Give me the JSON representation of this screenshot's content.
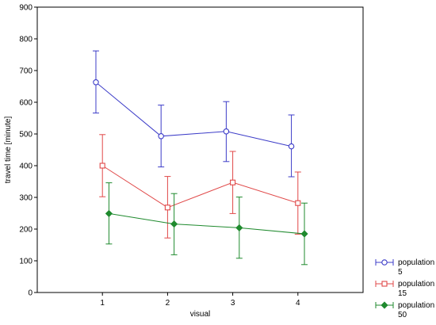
{
  "chart_data": {
    "type": "line",
    "title": "",
    "xlabel": "visual",
    "ylabel": "travel time [minute]",
    "xlim": [
      0,
      5
    ],
    "ylim": [
      0,
      900
    ],
    "x_ticks": [
      "1",
      "2",
      "3",
      "4"
    ],
    "y_ticks": [
      "0",
      "100",
      "200",
      "300",
      "400",
      "500",
      "600",
      "700",
      "800",
      "900"
    ],
    "grid": false,
    "legend_position": "bottom-right, outside plot",
    "error_bars": true,
    "series": [
      {
        "name": "population\n5",
        "label_lines": [
          "population",
          "5"
        ],
        "color": "#3c3cc8",
        "marker": "circle",
        "points": [
          {
            "x": 0.9,
            "y": 663,
            "lower": 566,
            "upper": 762
          },
          {
            "x": 1.9,
            "y": 493,
            "lower": 396,
            "upper": 591
          },
          {
            "x": 2.9,
            "y": 508,
            "lower": 413,
            "upper": 602
          },
          {
            "x": 3.9,
            "y": 461,
            "lower": 365,
            "upper": 560
          }
        ]
      },
      {
        "name": "population\n15",
        "label_lines": [
          "population",
          "15"
        ],
        "color": "#e04848",
        "marker": "square",
        "points": [
          {
            "x": 1.0,
            "y": 400,
            "lower": 302,
            "upper": 498
          },
          {
            "x": 2.0,
            "y": 268,
            "lower": 172,
            "upper": 366
          },
          {
            "x": 3.0,
            "y": 347,
            "lower": 249,
            "upper": 445
          },
          {
            "x": 4.0,
            "y": 282,
            "lower": 184,
            "upper": 380
          }
        ]
      },
      {
        "name": "population\n50",
        "label_lines": [
          "population",
          "50"
        ],
        "color": "#1f8a2e",
        "marker": "diamond",
        "points": [
          {
            "x": 1.1,
            "y": 249,
            "lower": 153,
            "upper": 346
          },
          {
            "x": 2.1,
            "y": 216,
            "lower": 119,
            "upper": 312
          },
          {
            "x": 3.1,
            "y": 204,
            "lower": 108,
            "upper": 301
          },
          {
            "x": 4.1,
            "y": 185,
            "lower": 88,
            "upper": 282
          }
        ]
      }
    ]
  }
}
